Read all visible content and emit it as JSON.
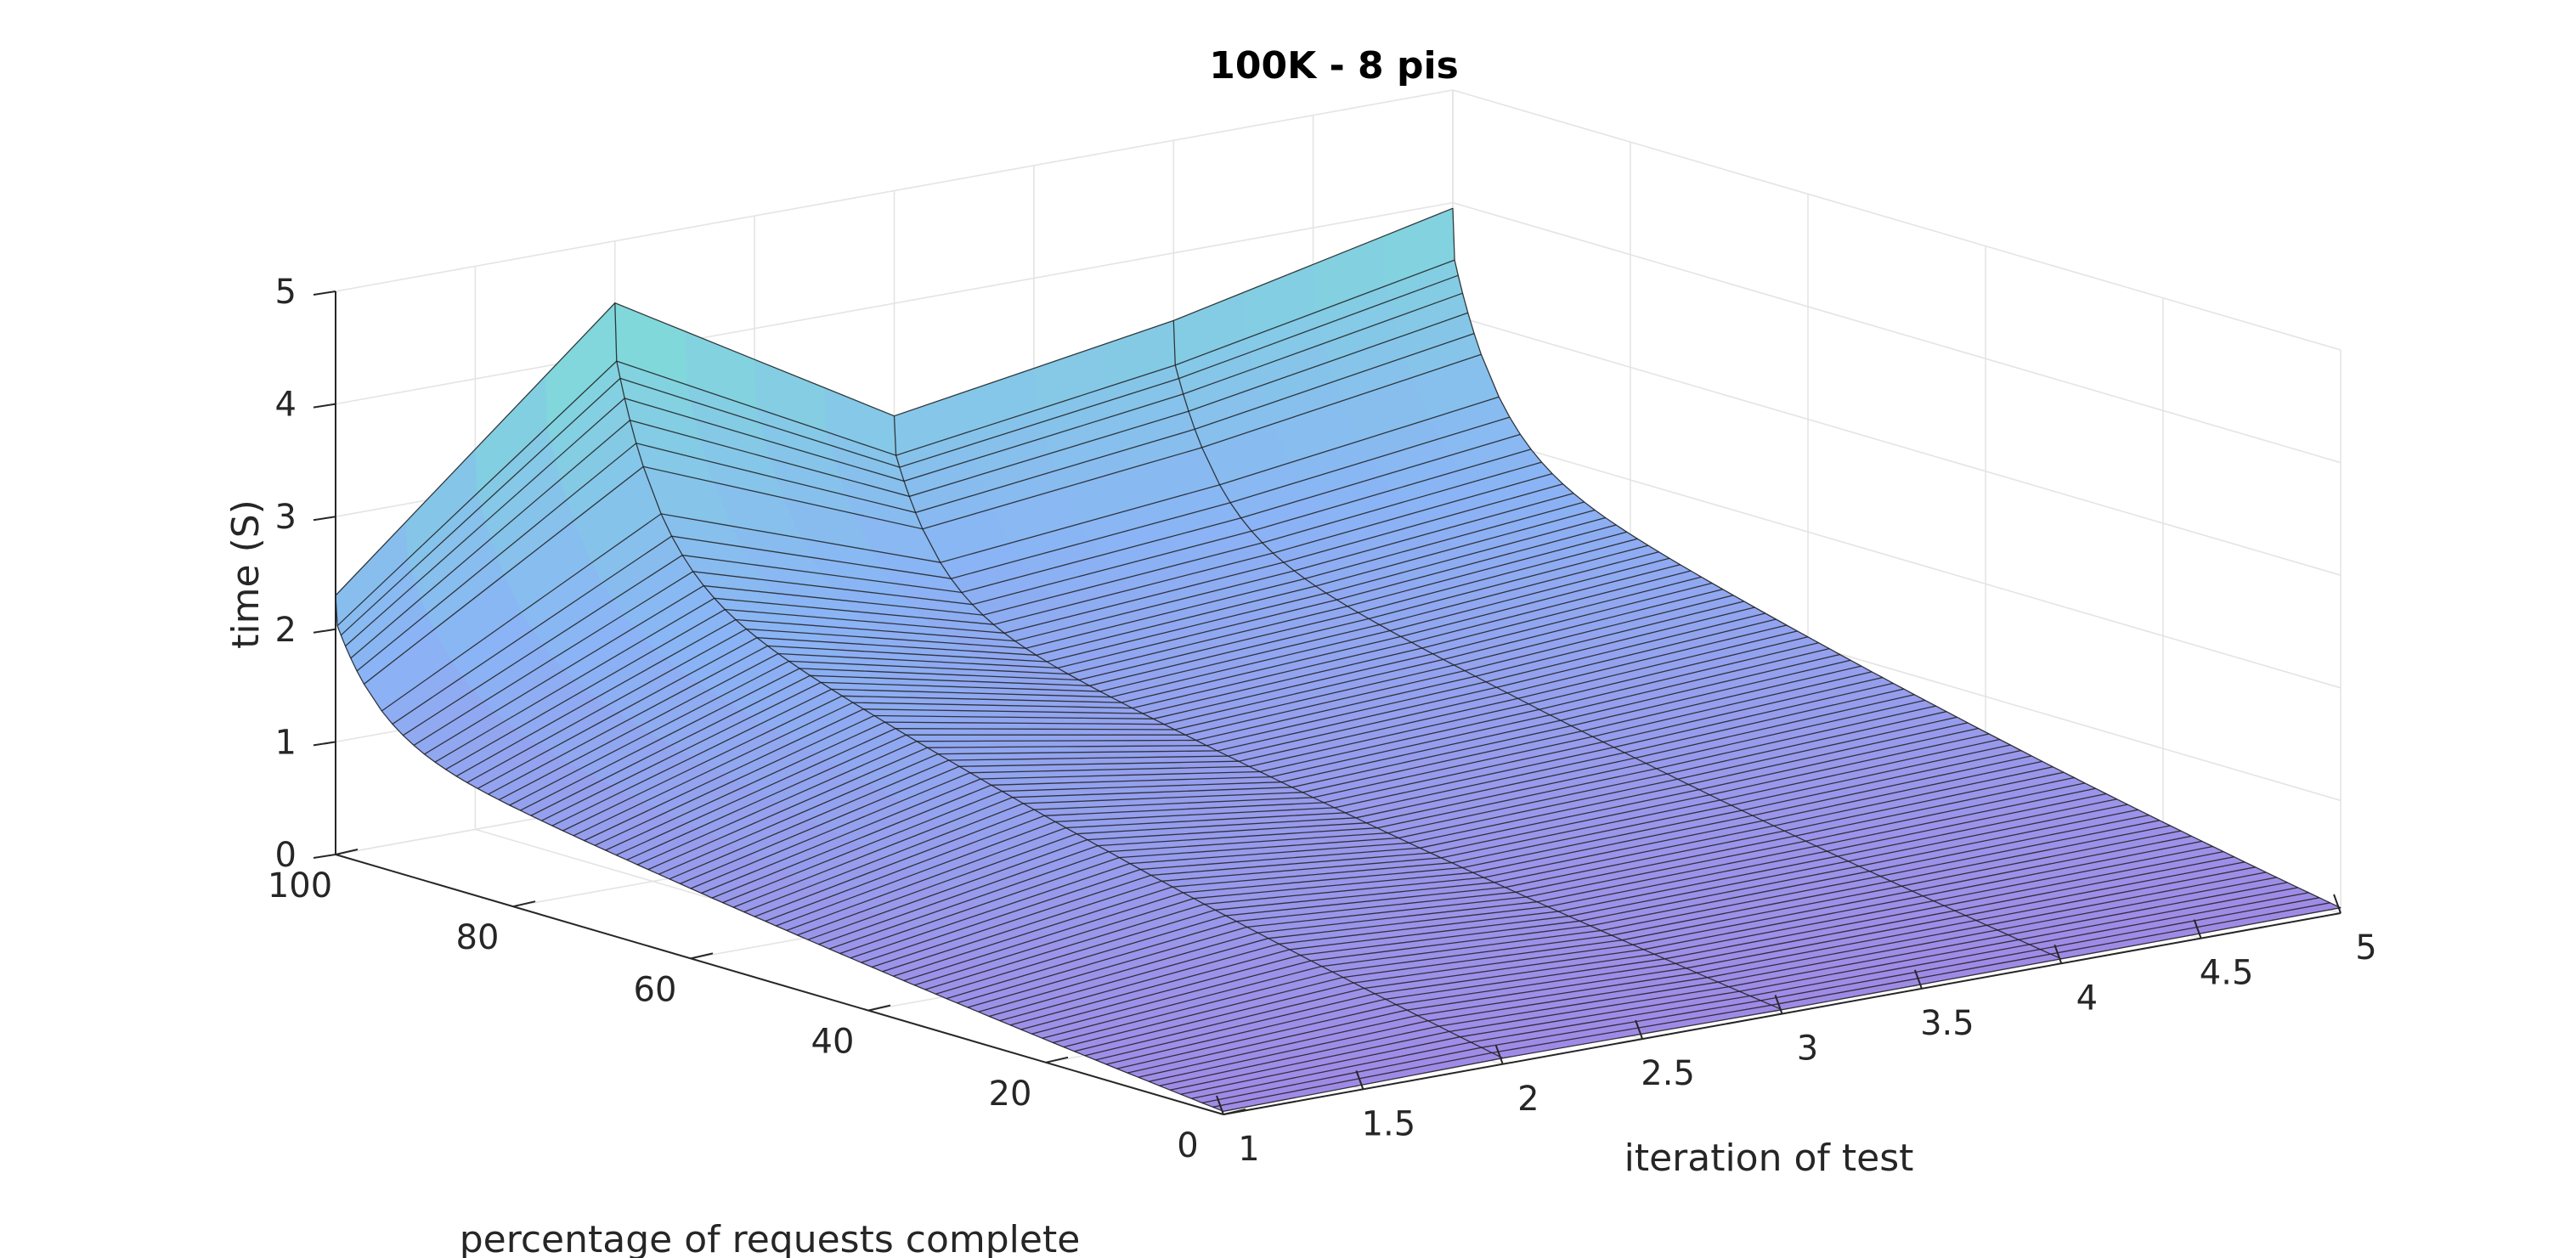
{
  "chart_data": {
    "type": "surface",
    "title": "100K - 8 pis",
    "xlabel": "iteration of test",
    "ylabel": "percentage of requests complete",
    "zlabel": "time (S)",
    "xlim": [
      1,
      5
    ],
    "ylim": [
      0,
      100
    ],
    "zlim": [
      0,
      5
    ],
    "x_ticks": [
      "1",
      "1.5",
      "2",
      "2.5",
      "3",
      "3.5",
      "4",
      "4.5",
      "5"
    ],
    "y_ticks": [
      "0",
      "20",
      "40",
      "60",
      "80",
      "100"
    ],
    "z_ticks": [
      "0",
      "1",
      "2",
      "3",
      "4",
      "5"
    ],
    "x": [
      1,
      2,
      3,
      4,
      5
    ],
    "percent_max_time": [
      2.3,
      4.45,
      3.0,
      3.4,
      3.95
    ],
    "grid": true,
    "colors": {
      "high": "#7fe0d6",
      "mid": "#8ab4f5",
      "low": "#a08ae6",
      "edge": "#1e1e1e"
    }
  }
}
